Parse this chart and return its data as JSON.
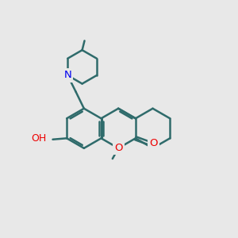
{
  "bg_color": "#e8e8e8",
  "bond_color": "#2f6b6b",
  "bond_width": 1.8,
  "atom_colors": {
    "N": "#0000ee",
    "O": "#ee0000"
  },
  "fig_width": 3.0,
  "fig_height": 3.0,
  "dpi": 100
}
